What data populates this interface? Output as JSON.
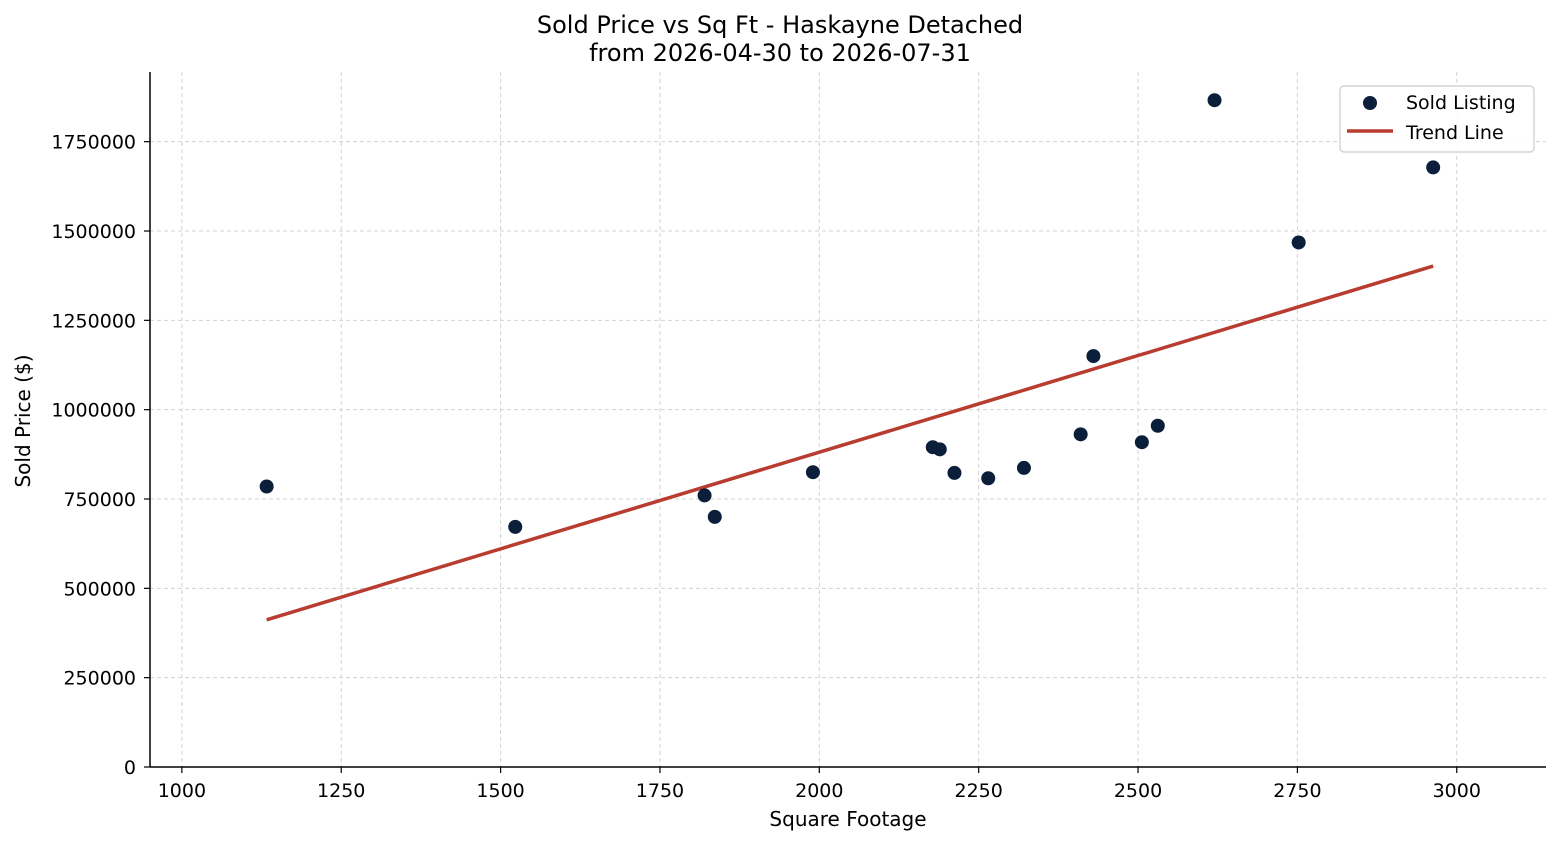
{
  "chart_data": {
    "type": "scatter",
    "title": "Sold Price vs Sq Ft - Haskayne Detached",
    "subtitle": "from 2026-04-30 to 2026-07-31",
    "xlabel": "Square Footage",
    "ylabel": "Sold Price ($)",
    "xlim": [
      950,
      3140
    ],
    "ylim": [
      0,
      1945000
    ],
    "xticks": [
      1000,
      1250,
      1500,
      1750,
      2000,
      2250,
      2500,
      2750,
      3000
    ],
    "yticks": [
      0,
      250000,
      500000,
      750000,
      1000000,
      1250000,
      1500000,
      1750000
    ],
    "grid": true,
    "legend_position": "top-right",
    "colors": {
      "points": "#0b1f3a",
      "trend": "#b83c2f",
      "grid": "#d3d3d3"
    },
    "series": [
      {
        "name": "Sold Listing",
        "kind": "scatter",
        "points": [
          [
            1133,
            785000
          ],
          [
            1523,
            672000
          ],
          [
            1820,
            760000
          ],
          [
            1836,
            700000
          ],
          [
            1990,
            825000
          ],
          [
            2178,
            895000
          ],
          [
            2189,
            889000
          ],
          [
            2212,
            823000
          ],
          [
            2265,
            808000
          ],
          [
            2321,
            837000
          ],
          [
            2410,
            931000
          ],
          [
            2430,
            1150000
          ],
          [
            2506,
            909000
          ],
          [
            2531,
            955000
          ],
          [
            2620,
            1866000
          ],
          [
            2752,
            1468000
          ],
          [
            2963,
            1678000
          ]
        ]
      },
      {
        "name": "Trend Line",
        "kind": "line",
        "points": [
          [
            1133,
            412000
          ],
          [
            2963,
            1402000
          ]
        ]
      }
    ]
  }
}
